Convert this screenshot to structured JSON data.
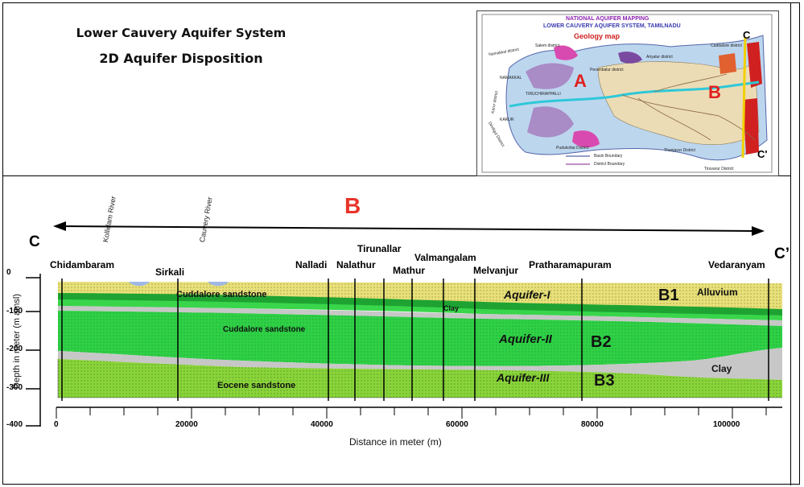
{
  "title": {
    "line1": "Lower Cauvery Aquifer System",
    "line2": "2D Aquifer Disposition"
  },
  "inset_map": {
    "heading1": "NATIONAL AQUIFER MAPPING",
    "heading2": "LOWER CAUVERY AQUIFER SYSTEM, TAMILNADU",
    "map_title": "Geology map",
    "label_a": "A",
    "label_b": "B",
    "label_c": "C",
    "label_c_prime": "C'",
    "districts": [
      "Namakkal district",
      "Salem district",
      "Perambalur district",
      "Ariyalur district",
      "Cuddalore district",
      "TIRUCHIRAPPALLI",
      "Karur district",
      "Dindigul District",
      "Pudukottai District",
      "Thanjavur District",
      "Tiruvarur District",
      "NAMAKKAL",
      "KARUR"
    ],
    "legend": [
      "Basin Boundary",
      "District Boundary"
    ],
    "colors": {
      "water": "#bcd6ee",
      "hills": "#a98bc6",
      "alluvium": "#ecdcb5",
      "magenta": "#d94ab0",
      "red": "#d02020",
      "river": "#2ec8d8",
      "section_line": "#f2d000"
    }
  },
  "section": {
    "label_b": "B",
    "end_left": "C",
    "end_right": "C’",
    "rivers": [
      "Kollidam River",
      "Cauvery River"
    ],
    "places": [
      "Chidambaram",
      "Sirkali",
      "Nalladi",
      "Nalathur",
      "Tirunallar",
      "Mathur",
      "Valmangalam",
      "Melvanjur",
      "Pratharamapuram",
      "Vedaranyam"
    ],
    "layers": {
      "cuddalore_upper": "Cuddalore sandstone",
      "cuddalore_middle": "Cuddalore sandstone",
      "eocene": "Eocene sandstone",
      "clay_upper": "Clay",
      "clay_lower": "Clay",
      "alluvium": "Alluvium"
    },
    "aquifers": [
      "Aquifer-I",
      "Aquifer-II",
      "Aquifer-III"
    ],
    "units": [
      "B1",
      "B2",
      "B3"
    ],
    "ylabel": "Depth in meter (m amsl)",
    "xlabel": "Distance in meter (m)",
    "y_ticks": [
      "0",
      "-100",
      "-200",
      "-300",
      "-400"
    ],
    "x_ticks": [
      "0",
      "20000",
      "40000",
      "60000",
      "80000",
      "100000"
    ],
    "colors": {
      "alluvium": "#e8e07a",
      "green_light": "#39d64b",
      "green_dark": "#1ea332",
      "eocene": "#8ad33a",
      "clay": "#c7c7c7",
      "river": "#9fb8e6",
      "arrow": "#000000",
      "label_red": "#e8342a"
    }
  }
}
